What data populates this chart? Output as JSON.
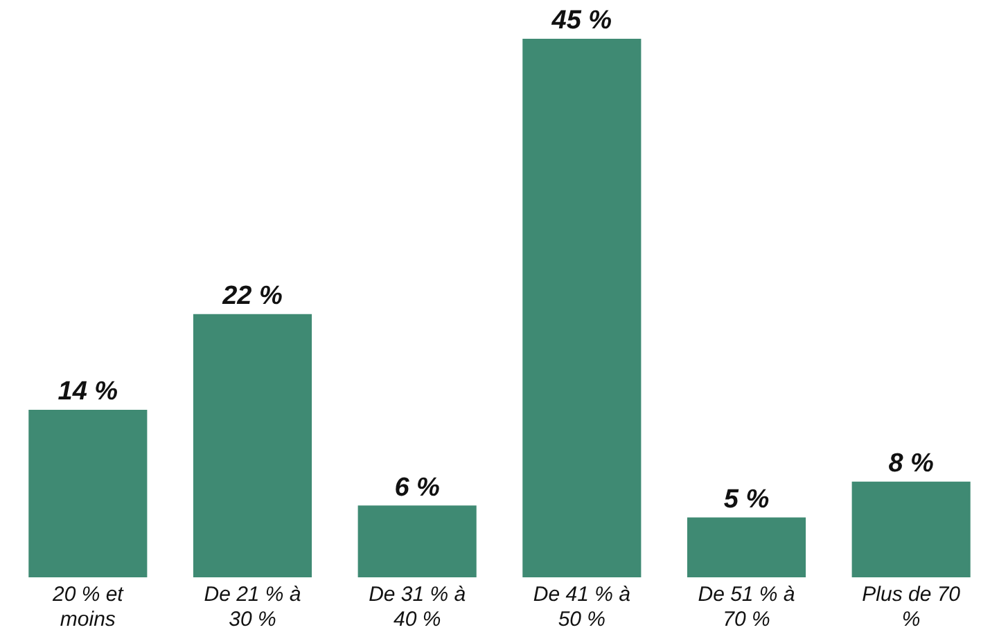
{
  "chart_data": {
    "type": "bar",
    "categories": [
      "20 % et moins",
      "De 21 % à 30 %",
      "De 31 % à 40 %",
      "De 41 % à 50 %",
      "De 51 % à 70 %",
      "Plus de 70 %"
    ],
    "values": [
      14,
      22,
      6,
      45,
      5,
      8
    ],
    "value_labels": [
      "14 %",
      "22 %",
      "6 %",
      "45 %",
      "5 %",
      "8 %"
    ],
    "color": "#3f8a73",
    "grid": false,
    "legend": false
  }
}
